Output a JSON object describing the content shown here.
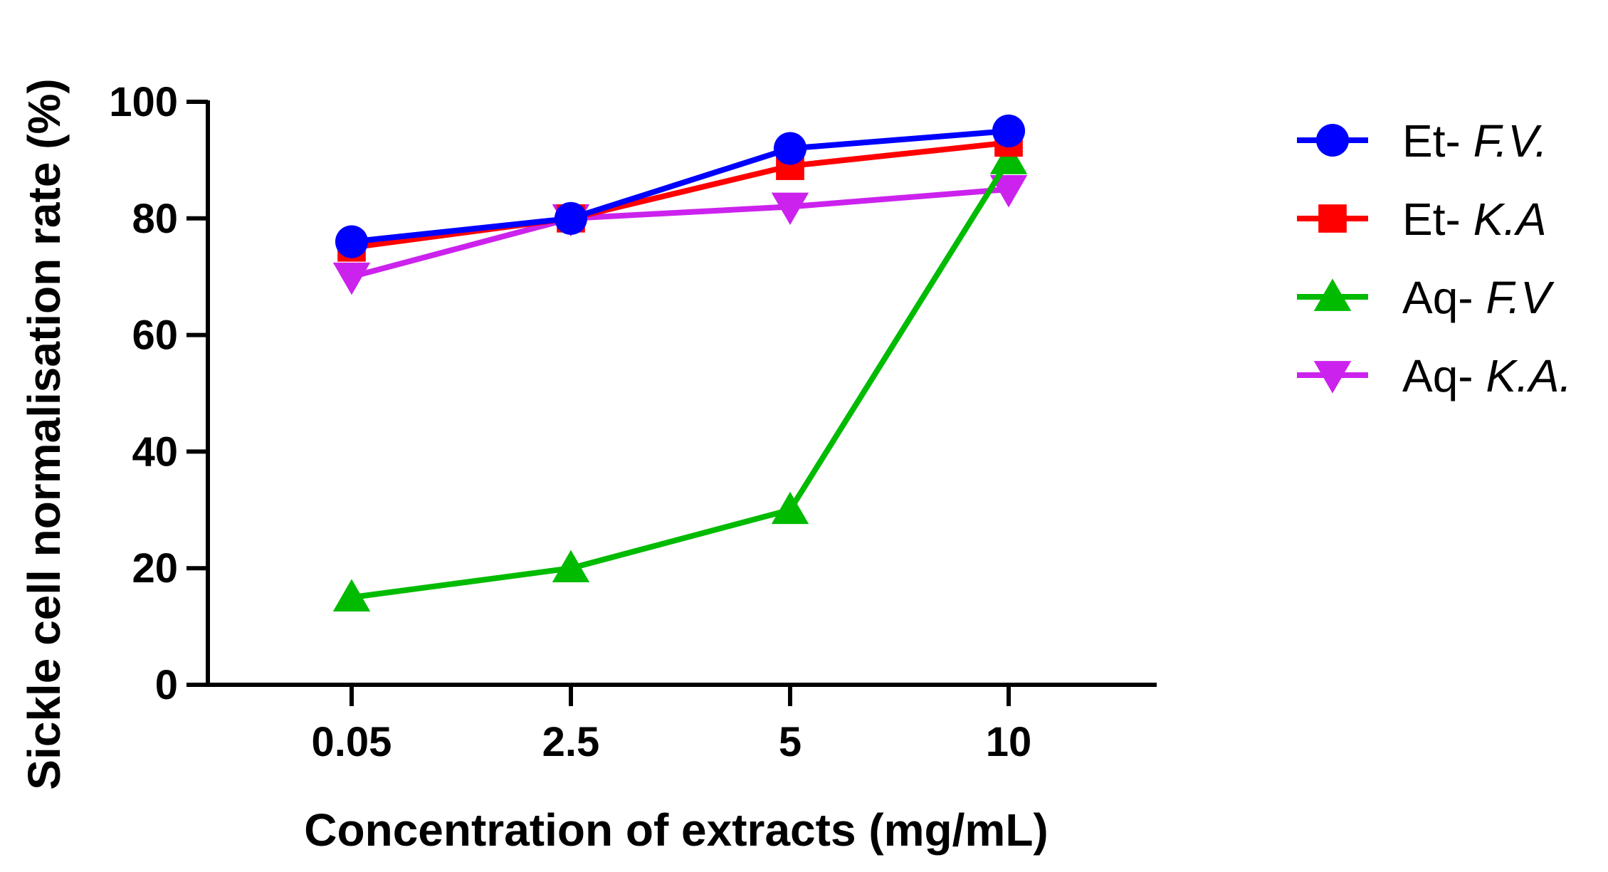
{
  "chart_data": {
    "type": "line",
    "title": "",
    "xlabel": "Concentration of extracts (mg/mL)",
    "ylabel": "Sickle cell normalisation rate (%)",
    "categories": [
      "0.05",
      "2.5",
      "5",
      "10"
    ],
    "ylim": [
      0,
      100
    ],
    "yticks": [
      "0",
      "20",
      "40",
      "60",
      "80",
      "100"
    ],
    "grid": false,
    "legend_position": "right",
    "series": [
      {
        "name": "Et- F.V.",
        "prefix": "Et-",
        "abbr": "F.V.",
        "marker": "circle",
        "color": "#0000ff",
        "values": [
          76,
          80,
          92,
          95
        ]
      },
      {
        "name": "Et- K.A",
        "prefix": "Et-",
        "abbr": "K.A",
        "marker": "square",
        "color": "#ff0000",
        "values": [
          75,
          80,
          89,
          93
        ]
      },
      {
        "name": "Aq- F.V",
        "prefix": "Aq-",
        "abbr": "F.V",
        "marker": "triangle-up",
        "color": "#00bb00",
        "values": [
          15,
          20,
          30,
          90
        ]
      },
      {
        "name": "Aq- K.A.",
        "prefix": "Aq-",
        "abbr": "K.A.",
        "marker": "triangle-down",
        "color": "#cc22ee",
        "values": [
          70,
          80,
          82,
          85
        ]
      }
    ]
  }
}
